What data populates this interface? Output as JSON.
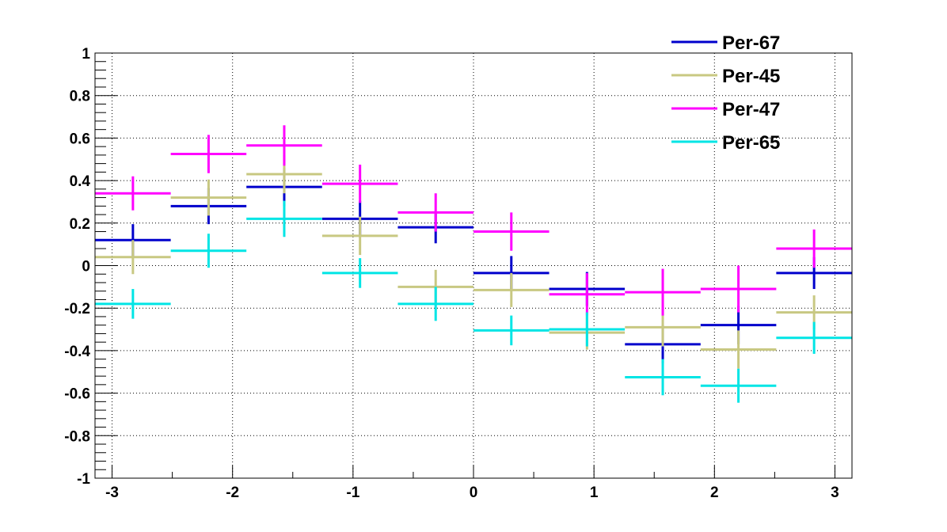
{
  "chart_data": {
    "type": "scatter",
    "title": "",
    "xlabel": "",
    "ylabel": "",
    "xlim": [
      -3.14159,
      3.14159
    ],
    "ylim": [
      -1,
      1
    ],
    "x_ticks": [
      -3,
      -2,
      -1,
      0,
      1,
      2,
      3
    ],
    "x_tick_labels": [
      "-3",
      "-2",
      "-1",
      "0",
      "1",
      "2",
      "3"
    ],
    "y_ticks": [
      -1,
      -0.8,
      -0.6,
      -0.4,
      -0.2,
      0,
      0.2,
      0.4,
      0.6,
      0.8,
      1
    ],
    "y_tick_labels": [
      "-1",
      "-0.8",
      "-0.6",
      "-0.4",
      "-0.2",
      "0",
      "0.2",
      "0.4",
      "0.6",
      "0.8",
      "1"
    ],
    "grid": true,
    "legend_position": "top-right",
    "x": [
      -2.827,
      -2.199,
      -1.571,
      -0.942,
      -0.314,
      0.314,
      0.942,
      1.571,
      2.199,
      2.827
    ],
    "x_half_width": 0.314,
    "series": [
      {
        "name": "Per-67",
        "color": "#0000cc",
        "values": [
          0.12,
          0.28,
          0.37,
          0.22,
          0.18,
          -0.035,
          -0.11,
          -0.37,
          -0.28,
          -0.035
        ],
        "errors": [
          0.075,
          0.085,
          0.09,
          0.085,
          0.075,
          0.08,
          0.08,
          0.09,
          0.09,
          0.075
        ]
      },
      {
        "name": "Per-45",
        "color": "#c8c882",
        "values": [
          0.04,
          0.32,
          0.43,
          0.14,
          -0.1,
          -0.115,
          -0.315,
          -0.29,
          -0.395,
          -0.22
        ],
        "errors": [
          0.08,
          0.085,
          0.09,
          0.09,
          0.08,
          0.08,
          0.08,
          0.09,
          0.09,
          0.08
        ]
      },
      {
        "name": "Per-47",
        "color": "#ff00ff",
        "values": [
          0.34,
          0.525,
          0.565,
          0.385,
          0.25,
          0.16,
          -0.135,
          -0.125,
          -0.11,
          0.08
        ],
        "errors": [
          0.08,
          0.09,
          0.095,
          0.09,
          0.09,
          0.09,
          0.1,
          0.11,
          0.11,
          0.09
        ]
      },
      {
        "name": "Per-65",
        "color": "#00e5e5",
        "values": [
          -0.18,
          0.07,
          0.22,
          -0.035,
          -0.18,
          -0.305,
          -0.3,
          -0.525,
          -0.565,
          -0.34
        ],
        "errors": [
          0.07,
          0.08,
          0.085,
          0.07,
          0.08,
          0.07,
          0.08,
          0.085,
          0.08,
          0.075
        ]
      }
    ]
  }
}
